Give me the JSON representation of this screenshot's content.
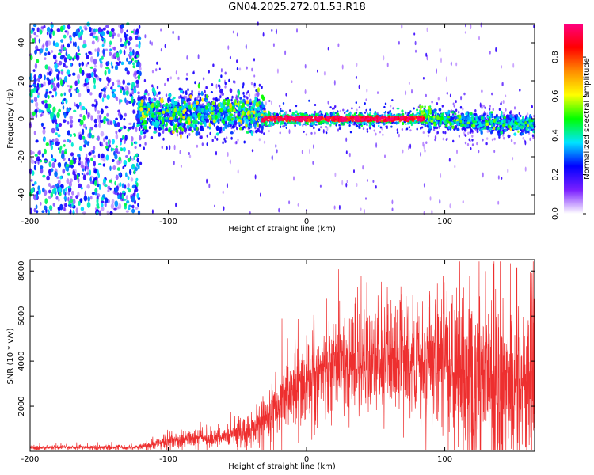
{
  "title": "GN04.2025.272.01.53.R18",
  "colors": {
    "line": "#ee2f2f",
    "axis": "#000000",
    "background": "#ffffff"
  },
  "chart_data": [
    {
      "type": "heatmap",
      "title": "GN04.2025.272.01.53.R18",
      "xlabel": "Height of straight line (km)",
      "ylabel": "Frequency (Hz)",
      "xlim": [
        -200,
        165
      ],
      "ylim": [
        -50,
        50
      ],
      "xticks": [
        -200,
        -100,
        0,
        100
      ],
      "yticks": [
        -40,
        -20,
        0,
        20,
        40
      ],
      "colorbar": {
        "label": "Normalized spectral amplitude",
        "range": [
          0,
          0.97
        ],
        "ticks": [
          "0.0",
          "0.2",
          "0.4",
          "0.6",
          "0.8"
        ],
        "colormap": [
          "#ffffff",
          "#7a1fff",
          "#0000ff",
          "#00e5ff",
          "#00ff00",
          "#ffff00",
          "#ff8c00",
          "#ff0000",
          "#ff0080"
        ]
      },
      "regions": [
        {
          "x": [
            -200,
            -120
          ],
          "description": "broadband noise",
          "amplitude": 0.25
        },
        {
          "x": [
            -120,
            -32
          ],
          "center_hz": 3,
          "spread_hz": 10,
          "amplitude": 0.4
        },
        {
          "x": [
            -32,
            85
          ],
          "center_hz": 0,
          "spread_hz": 3,
          "amplitude": 0.9
        },
        {
          "x": [
            85,
            165
          ],
          "center_hz": -3,
          "spread_hz": 5,
          "amplitude": 0.45
        }
      ]
    },
    {
      "type": "line",
      "xlabel": "Height of straight line (km)",
      "ylabel": "SNR (10 * v/v)",
      "xlim": [
        -200,
        165
      ],
      "ylim": [
        0,
        8500
      ],
      "xticks": [
        -200,
        -100,
        0,
        100
      ],
      "yticks": [
        2000,
        4000,
        6000,
        8000
      ],
      "series": [
        {
          "name": "SNR",
          "envelope_x": [
            -200,
            -120,
            -100,
            -60,
            -40,
            -25,
            -10,
            0,
            20,
            40,
            60,
            80,
            100,
            120,
            140,
            165
          ],
          "envelope_mean": [
            170,
            190,
            450,
            650,
            900,
            1700,
            2700,
            3000,
            3800,
            4000,
            4000,
            3900,
            3900,
            3500,
            3200,
            3000
          ],
          "envelope_amp": [
            70,
            100,
            250,
            350,
            600,
            1000,
            1400,
            1600,
            1800,
            2000,
            2000,
            2200,
            2700,
            3200,
            3400,
            3300
          ]
        }
      ]
    }
  ]
}
